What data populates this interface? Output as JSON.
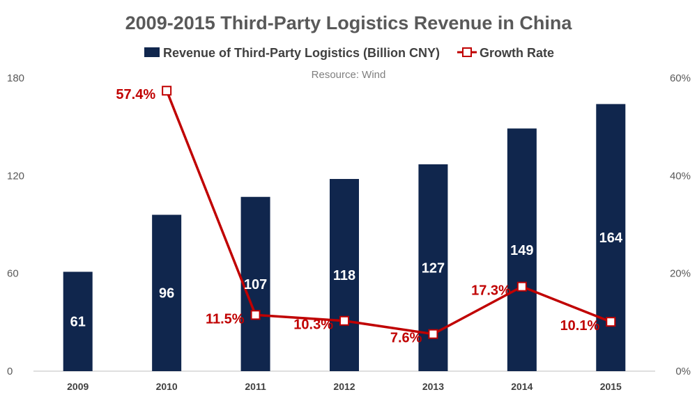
{
  "colors": {
    "bar": "#10264d",
    "line": "#c00000",
    "marker_fill": "#ffffff",
    "gridline": "#d9d9d9",
    "axis": "#bfbfbf"
  },
  "chart_data": {
    "type": "bar",
    "title": "2009-2015 Third-Party Logistics Revenue in China",
    "subtitle": "Resource:  Wind",
    "categories": [
      "2009",
      "2010",
      "2011",
      "2012",
      "2013",
      "2014",
      "2015"
    ],
    "series": [
      {
        "name": "Revenue of Third-Party Logistics (Billion CNY)",
        "type": "bar",
        "axis": "left",
        "values": [
          61,
          96,
          107,
          118,
          127,
          149,
          164
        ],
        "data_labels": [
          "61",
          "96",
          "107",
          "118",
          "127",
          "149",
          "164"
        ]
      },
      {
        "name": "Growth Rate",
        "type": "line",
        "axis": "right",
        "values": [
          null,
          57.4,
          11.5,
          10.3,
          7.6,
          17.3,
          10.1
        ],
        "data_labels": [
          null,
          "57.4%",
          "11.5%",
          "10.3%",
          "7.6%",
          "17.3%",
          "10.1%"
        ]
      }
    ],
    "y_left": {
      "min": 0,
      "max": 180,
      "ticks": [
        "0",
        "60",
        "120",
        "180"
      ]
    },
    "y_right": {
      "min": 0,
      "max": 60,
      "ticks": [
        "0%",
        "20%",
        "40%",
        "60%"
      ]
    },
    "grid": false,
    "legend_position": "top"
  }
}
